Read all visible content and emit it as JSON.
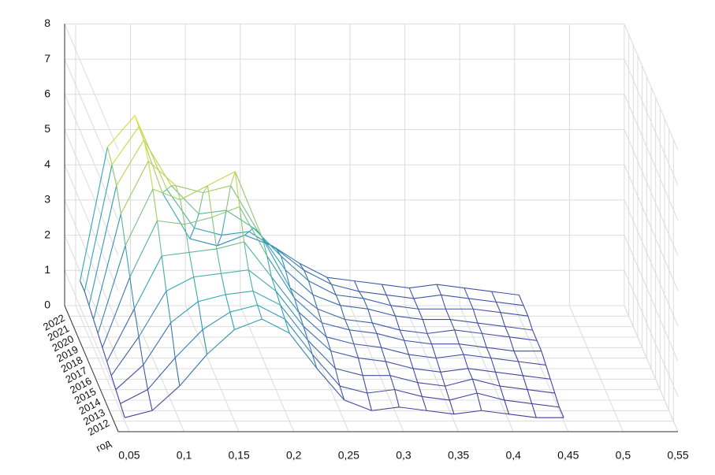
{
  "chart_data": {
    "type": "mesh",
    "x": [
      0.05,
      0.075,
      0.1,
      0.125,
      0.15,
      0.175,
      0.2,
      0.225,
      0.25,
      0.275,
      0.3,
      0.325,
      0.35,
      0.375,
      0.4,
      0.425,
      0.45
    ],
    "y_label": "год",
    "series": [
      {
        "name": "2012",
        "values": [
          0.1,
          0.3,
          1.0,
          1.9,
          2.6,
          2.9,
          2.5,
          1.5,
          0.6,
          0.3,
          0.4,
          0.3,
          0.2,
          0.3,
          0.2,
          0.1,
          0.1
        ]
      },
      {
        "name": "2013",
        "values": [
          0.2,
          0.6,
          1.5,
          2.3,
          2.8,
          3.0,
          2.6,
          1.6,
          0.7,
          0.5,
          0.6,
          0.4,
          0.3,
          0.5,
          0.3,
          0.2,
          0.1
        ]
      },
      {
        "name": "2014",
        "values": [
          0.3,
          1.0,
          2.2,
          2.8,
          3.0,
          3.1,
          2.7,
          1.7,
          0.9,
          0.7,
          0.7,
          0.5,
          0.4,
          0.6,
          0.4,
          0.3,
          0.2
        ]
      },
      {
        "name": "2015",
        "values": [
          0.4,
          1.5,
          2.8,
          3.2,
          3.3,
          3.4,
          2.8,
          1.8,
          1.1,
          0.9,
          0.8,
          0.6,
          0.5,
          0.6,
          0.5,
          0.4,
          0.3
        ]
      },
      {
        "name": "2016",
        "values": [
          0.5,
          2.0,
          3.5,
          3.6,
          3.7,
          3.9,
          2.9,
          1.9,
          1.2,
          1.0,
          0.9,
          0.7,
          0.6,
          0.7,
          0.6,
          0.5,
          0.4
        ]
      },
      {
        "name": "2017",
        "values": [
          0.6,
          2.6,
          4.2,
          4.1,
          4.3,
          4.6,
          3.2,
          2.0,
          1.3,
          1.1,
          1.0,
          0.8,
          0.7,
          0.7,
          0.6,
          0.5,
          0.5
        ]
      },
      {
        "name": "2018",
        "values": [
          0.7,
          3.2,
          4.8,
          4.5,
          4.9,
          5.3,
          3.4,
          2.0,
          1.4,
          1.1,
          1.0,
          0.8,
          0.7,
          0.8,
          0.7,
          0.6,
          0.5
        ]
      },
      {
        "name": "2019",
        "values": [
          0.8,
          3.8,
          5.3,
          4.6,
          4.4,
          4.6,
          3.3,
          2.2,
          1.5,
          1.2,
          1.1,
          0.9,
          0.8,
          0.8,
          0.7,
          0.6,
          0.5
        ]
      },
      {
        "name": "2020",
        "values": [
          0.9,
          4.3,
          5.6,
          4.3,
          3.5,
          3.6,
          3.1,
          2.3,
          1.6,
          1.2,
          1.1,
          0.9,
          0.8,
          0.8,
          0.8,
          0.7,
          0.6
        ]
      },
      {
        "name": "2021",
        "values": [
          1.0,
          4.6,
          5.7,
          3.9,
          2.8,
          2.6,
          2.7,
          2.2,
          1.6,
          1.2,
          1.0,
          0.9,
          0.8,
          0.9,
          0.8,
          0.7,
          0.6
        ]
      },
      {
        "name": "2022",
        "values": [
          1.0,
          4.8,
          5.7,
          3.5,
          2.2,
          2.0,
          2.3,
          2.0,
          1.5,
          1.1,
          1.0,
          0.9,
          0.8,
          0.9,
          0.8,
          0.7,
          0.6
        ]
      }
    ],
    "colormap": [
      "#46399a",
      "#2fa8b8",
      "#f2e42c"
    ],
    "xlim": [
      0.04,
      0.55
    ],
    "xticks": [
      {
        "value": 0.05,
        "label": "0,05"
      },
      {
        "value": 0.1,
        "label": "0,1"
      },
      {
        "value": 0.15,
        "label": "0,15"
      },
      {
        "value": 0.2,
        "label": "0,2"
      },
      {
        "value": 0.25,
        "label": "0,25"
      },
      {
        "value": 0.3,
        "label": "0,3"
      },
      {
        "value": 0.35,
        "label": "0,35"
      },
      {
        "value": 0.4,
        "label": "0,4"
      },
      {
        "value": 0.45,
        "label": "0,45"
      },
      {
        "value": 0.5,
        "label": "0,5"
      },
      {
        "value": 0.55,
        "label": "0,55"
      }
    ],
    "ylim": [
      2011,
      2023
    ],
    "yticks": [
      2012,
      2013,
      2014,
      2015,
      2016,
      2017,
      2018,
      2019,
      2020,
      2021,
      2022
    ],
    "zlim": [
      0,
      8
    ],
    "zticks": [
      0,
      1,
      2,
      3,
      4,
      5,
      6,
      7,
      8
    ],
    "grid": true
  }
}
